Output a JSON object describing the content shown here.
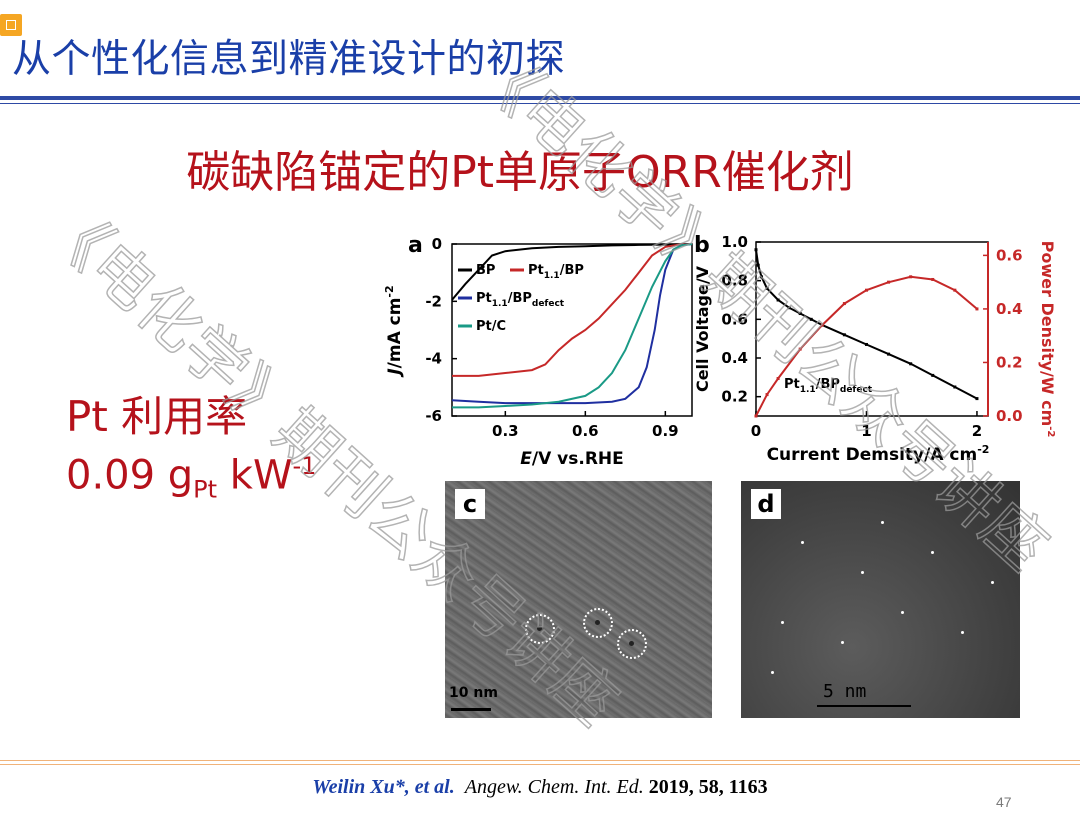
{
  "slide": {
    "title": "从个性化信息到精准设计的初探",
    "subtitle": "碳缺陷锚定的Pt单原子ORR催化剂",
    "utilization": {
      "label": "Pt 利用率",
      "value_number": "0.09 g",
      "value_sub": "Pt",
      "value_unit": " kW",
      "value_sup": "-1"
    },
    "citation": {
      "authors": "Weilin Xu*, et al.",
      "journal": "Angew. Chem. Int. Ed.",
      "volinfo": "2019, 58, 1163"
    },
    "page_number": "47",
    "watermark": "《电化学》期刊公众号讲座"
  },
  "colors": {
    "title_blue": "#1a3fa8",
    "accent_red": "#b5121b",
    "series_black": "#000000",
    "series_red": "#c62828",
    "series_blue": "#1f2fa0",
    "series_teal": "#1a9a86"
  },
  "figures": {
    "c": {
      "letter": "c",
      "scale": "10 nm"
    },
    "d": {
      "letter": "d",
      "scale": "5 nm"
    }
  },
  "chart_data": [
    {
      "panel": "a",
      "type": "line",
      "xlabel_italic": "E",
      "xlabel": "/V vs.RHE",
      "ylabel_italic": "J",
      "ylabel": "/mA cm",
      "ylabel_sup": "-2",
      "xlim": [
        0.1,
        1.0
      ],
      "ylim": [
        -6,
        0
      ],
      "xticks": [
        0.3,
        0.6,
        0.9
      ],
      "yticks": [
        0,
        -2,
        -4,
        -6
      ],
      "legend_position": "top-left",
      "series": [
        {
          "name": "BP",
          "color": "#000000",
          "x": [
            0.1,
            0.15,
            0.2,
            0.25,
            0.3,
            0.4,
            0.5,
            0.6,
            0.7,
            0.8,
            0.9,
            1.0
          ],
          "y": [
            -1.95,
            -1.4,
            -0.9,
            -0.4,
            -0.25,
            -0.15,
            -0.1,
            -0.08,
            -0.05,
            -0.03,
            -0.02,
            0.0
          ]
        },
        {
          "name": "Pt1.1/BP",
          "color": "#c62828",
          "x": [
            0.1,
            0.2,
            0.3,
            0.4,
            0.45,
            0.5,
            0.55,
            0.6,
            0.65,
            0.7,
            0.75,
            0.8,
            0.85,
            0.9,
            0.95,
            1.0
          ],
          "y": [
            -4.6,
            -4.6,
            -4.5,
            -4.4,
            -4.2,
            -3.7,
            -3.3,
            -3.0,
            -2.6,
            -2.1,
            -1.6,
            -1.0,
            -0.4,
            -0.1,
            -0.02,
            0.0
          ]
        },
        {
          "name": "Pt1.1/BPdefect",
          "color": "#1f2fa0",
          "x": [
            0.1,
            0.2,
            0.3,
            0.4,
            0.5,
            0.6,
            0.7,
            0.75,
            0.8,
            0.83,
            0.86,
            0.88,
            0.9,
            0.93,
            0.96,
            1.0
          ],
          "y": [
            -5.45,
            -5.5,
            -5.55,
            -5.55,
            -5.55,
            -5.55,
            -5.5,
            -5.4,
            -5.0,
            -4.3,
            -3.0,
            -1.8,
            -0.9,
            -0.2,
            -0.05,
            0.0
          ]
        },
        {
          "name": "Pt/C",
          "color": "#1a9a86",
          "x": [
            0.1,
            0.2,
            0.3,
            0.4,
            0.5,
            0.6,
            0.65,
            0.7,
            0.75,
            0.8,
            0.85,
            0.9,
            0.93,
            0.96,
            1.0
          ],
          "y": [
            -5.7,
            -5.7,
            -5.65,
            -5.6,
            -5.5,
            -5.3,
            -5.0,
            -4.5,
            -3.7,
            -2.6,
            -1.5,
            -0.6,
            -0.2,
            -0.05,
            0.0
          ]
        }
      ]
    },
    {
      "panel": "b",
      "type": "line",
      "xlabel": "Current Demsity/A cm",
      "xlabel_sup": "-2",
      "ylabel_left": "Cell Voltage/V",
      "ylabel_right": "Power Density/W cm",
      "ylabel_right_sup": "-2",
      "xlim": [
        0,
        2.1
      ],
      "ylim_left": [
        0.1,
        1.0
      ],
      "ylim_right": [
        0.0,
        0.65
      ],
      "xticks": [
        0,
        1,
        2
      ],
      "yticks_left": [
        0.2,
        0.4,
        0.6,
        0.8,
        1.0
      ],
      "yticks_right": [
        0.0,
        0.2,
        0.4,
        0.6
      ],
      "annotation": "Pt1.1/BPdefect",
      "series": [
        {
          "name": "Cell Voltage",
          "axis": "left",
          "color": "#000000",
          "x": [
            0,
            0.02,
            0.05,
            0.1,
            0.2,
            0.3,
            0.4,
            0.5,
            0.6,
            0.8,
            1.0,
            1.2,
            1.4,
            1.6,
            1.8,
            2.0
          ],
          "y": [
            0.96,
            0.88,
            0.82,
            0.76,
            0.7,
            0.66,
            0.63,
            0.6,
            0.57,
            0.52,
            0.47,
            0.42,
            0.37,
            0.31,
            0.25,
            0.19
          ]
        },
        {
          "name": "Power Density",
          "axis": "right",
          "color": "#c62828",
          "x": [
            0,
            0.1,
            0.2,
            0.4,
            0.6,
            0.8,
            1.0,
            1.2,
            1.4,
            1.6,
            1.8,
            2.0
          ],
          "y": [
            0.0,
            0.08,
            0.14,
            0.25,
            0.34,
            0.42,
            0.47,
            0.5,
            0.52,
            0.51,
            0.47,
            0.4
          ]
        }
      ]
    }
  ]
}
